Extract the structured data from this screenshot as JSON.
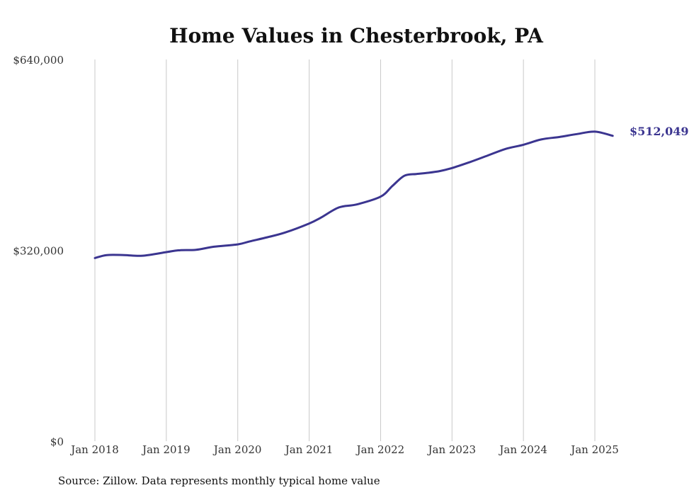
{
  "chart_data": {
    "type": "line",
    "title": "Home Values in Chesterbrook, PA",
    "xlabel": "",
    "ylabel": "",
    "ylim": [
      0,
      640000
    ],
    "yticks": [
      {
        "value": 0,
        "label": "$0"
      },
      {
        "value": 320000,
        "label": "$320,000"
      },
      {
        "value": 640000,
        "label": "$640,000"
      }
    ],
    "xlim": [
      "2018-01",
      "2025-04"
    ],
    "xticks": [
      {
        "date": "2018-01",
        "label": "Jan 2018"
      },
      {
        "date": "2019-01",
        "label": "Jan 2019"
      },
      {
        "date": "2020-01",
        "label": "Jan 2020"
      },
      {
        "date": "2021-01",
        "label": "Jan 2021"
      },
      {
        "date": "2022-01",
        "label": "Jan 2022"
      },
      {
        "date": "2023-01",
        "label": "Jan 2023"
      },
      {
        "date": "2024-01",
        "label": "Jan 2024"
      },
      {
        "date": "2025-01",
        "label": "Jan 2025"
      }
    ],
    "grid": "vertical",
    "series_color": "#3b3590",
    "series": [
      {
        "x": [
          "2018-01",
          "2018-03",
          "2018-06",
          "2018-09",
          "2019-01",
          "2019-03",
          "2019-06",
          "2019-09",
          "2020-01",
          "2020-03",
          "2020-06",
          "2020-09",
          "2021-01",
          "2021-03",
          "2021-06",
          "2021-09",
          "2022-01",
          "2022-03",
          "2022-05",
          "2022-07",
          "2022-09",
          "2022-11",
          "2023-01",
          "2023-04",
          "2023-07",
          "2023-10",
          "2024-01",
          "2024-04",
          "2024-07",
          "2024-10",
          "2025-01",
          "2025-04"
        ],
        "values": [
          307000,
          312000,
          312000,
          311000,
          317000,
          320000,
          321000,
          326000,
          330000,
          335000,
          342000,
          350000,
          365000,
          375000,
          392000,
          397000,
          410000,
          428000,
          445000,
          448000,
          450000,
          453000,
          458000,
          468000,
          479000,
          490000,
          497000,
          506000,
          510000,
          515000,
          519000,
          512049
        ]
      }
    ],
    "end_label": "$512,049",
    "source": "Source: Zillow. Data represents monthly typical home value"
  }
}
